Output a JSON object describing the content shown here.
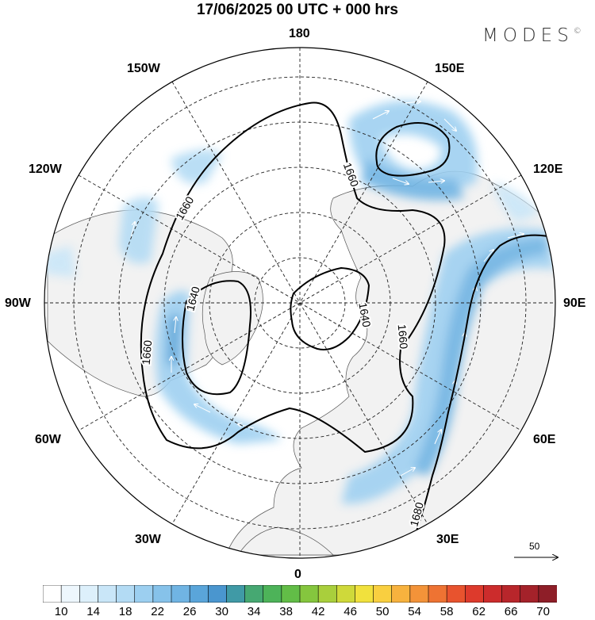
{
  "title": "17/06/2025  00 UTC  + 000 hrs",
  "brand": {
    "name": "MODES",
    "mark": "©"
  },
  "lon_labels": {
    "top": "180",
    "bottom": "0",
    "left": "90W",
    "right": "90E",
    "upper_left": "150W",
    "upper_right": "150E",
    "mid_upper_left": "120W",
    "mid_upper_right": "120E",
    "mid_lower_left": "60W",
    "mid_lower_right": "60E",
    "lower_left": "30W",
    "lower_right": "30E"
  },
  "contour_labels": [
    "1660",
    "1660",
    "1640",
    "1640",
    "1660",
    "1660",
    "1680"
  ],
  "reference_vector": {
    "label": "50"
  },
  "colorbar": {
    "ticks": [
      "10",
      "14",
      "18",
      "22",
      "26",
      "30",
      "34",
      "38",
      "42",
      "46",
      "50",
      "54",
      "58",
      "62",
      "66",
      "70"
    ],
    "colors": [
      "#ffffff",
      "#eef7fd",
      "#ddf0fb",
      "#c9e6f8",
      "#b3dbf4",
      "#9ccff0",
      "#86c2ea",
      "#70b4e3",
      "#5aa5da",
      "#4a96cf",
      "#409aa6",
      "#46a872",
      "#4db359",
      "#62bd47",
      "#85c63e",
      "#a9cf3c",
      "#cfd93a",
      "#f1e13d",
      "#f9cf40",
      "#f7b23e",
      "#f39339",
      "#ee7333",
      "#e8532e",
      "#dd3a2c",
      "#cc2c2c",
      "#b8262b",
      "#a4222a",
      "#8e1e28"
    ]
  }
}
